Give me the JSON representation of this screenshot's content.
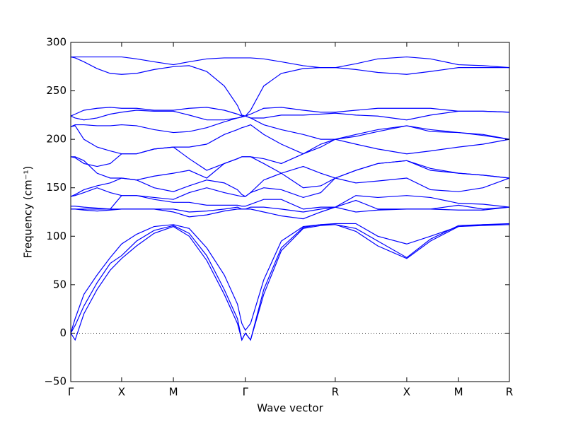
{
  "chart_data": {
    "type": "line",
    "xlabel": "Wave vector",
    "ylabel": "Frequency (cm⁻¹)",
    "color": "#0000ff",
    "hline": 0,
    "xlim": [
      0,
      1
    ],
    "ylim": [
      -50,
      300
    ],
    "xticks": [
      {
        "value": 0,
        "label": "Γ"
      },
      {
        "value": 0.116,
        "label": "X"
      },
      {
        "value": 0.234,
        "label": "M"
      },
      {
        "value": 0.398,
        "label": "Γ"
      },
      {
        "value": 0.603,
        "label": "R"
      },
      {
        "value": 0.766,
        "label": "X"
      },
      {
        "value": 0.884,
        "label": "M"
      },
      {
        "value": 1,
        "label": "R"
      }
    ],
    "yticks": [
      {
        "value": -50,
        "label": "−50"
      },
      0,
      50,
      100,
      150,
      200,
      250,
      300
    ],
    "x": [
      0,
      0.01,
      0.03,
      0.06,
      0.09,
      0.116,
      0.15,
      0.19,
      0.234,
      0.27,
      0.31,
      0.35,
      0.38,
      0.39,
      0.398,
      0.41,
      0.44,
      0.48,
      0.53,
      0.57,
      0.603,
      0.65,
      0.7,
      0.766,
      0.82,
      0.884,
      0.94,
      1
    ],
    "series": [
      {
        "values": [
          0,
          -7,
          20,
          45,
          65,
          77,
          90,
          103,
          110,
          100,
          75,
          40,
          10,
          -7,
          0,
          -7,
          40,
          85,
          108,
          111,
          112,
          105,
          90,
          77,
          95,
          110,
          111,
          112
        ]
      },
      {
        "values": [
          0,
          8,
          28,
          52,
          72,
          80,
          95,
          106,
          111,
          103,
          80,
          45,
          15,
          -7,
          0,
          -7,
          45,
          88,
          109,
          112,
          112,
          108,
          95,
          78,
          97,
          111,
          112,
          112
        ]
      },
      {
        "values": [
          0,
          15,
          40,
          60,
          78,
          92,
          102,
          110,
          112,
          108,
          88,
          60,
          30,
          10,
          3,
          10,
          55,
          95,
          110,
          112,
          113,
          113,
          100,
          92,
          100,
          110,
          112,
          113
        ]
      },
      {
        "values": [
          128,
          128,
          127,
          126,
          127,
          128,
          128,
          128,
          125,
          120,
          122,
          126,
          128,
          128,
          128,
          128,
          125,
          121,
          118,
          125,
          130,
          125,
          127,
          128,
          128,
          127,
          127,
          130
        ]
      },
      {
        "values": [
          128,
          128,
          128,
          128,
          128,
          128,
          128,
          128,
          128,
          125,
          126,
          128,
          130,
          128,
          128,
          130,
          130,
          128,
          125,
          128,
          130,
          137,
          128,
          128,
          128,
          132,
          128,
          130
        ]
      },
      {
        "values": [
          131,
          131,
          130,
          129,
          128,
          142,
          142,
          138,
          135,
          135,
          132,
          132,
          132,
          131,
          131,
          133,
          138,
          138,
          128,
          130,
          130,
          142,
          140,
          142,
          140,
          134,
          133,
          130
        ]
      },
      {
        "values": [
          141,
          142,
          145,
          150,
          145,
          142,
          142,
          140,
          138,
          145,
          150,
          145,
          142,
          141,
          141,
          145,
          150,
          148,
          140,
          145,
          160,
          155,
          157,
          160,
          148,
          146,
          150,
          160
        ]
      },
      {
        "values": [
          141,
          143,
          148,
          152,
          155,
          160,
          158,
          150,
          146,
          152,
          158,
          155,
          148,
          143,
          141,
          145,
          158,
          165,
          150,
          152,
          160,
          168,
          175,
          178,
          170,
          165,
          163,
          160
        ]
      },
      {
        "values": [
          182,
          182,
          178,
          165,
          160,
          160,
          158,
          162,
          165,
          168,
          160,
          175,
          180,
          182,
          182,
          182,
          175,
          165,
          172,
          165,
          160,
          168,
          175,
          178,
          168,
          165,
          163,
          160
        ]
      },
      {
        "values": [
          182,
          181,
          175,
          172,
          175,
          185,
          185,
          190,
          192,
          180,
          168,
          175,
          180,
          182,
          182,
          182,
          180,
          175,
          185,
          195,
          200,
          203,
          208,
          214,
          208,
          207,
          205,
          200
        ]
      },
      {
        "values": [
          213,
          214,
          200,
          192,
          188,
          185,
          185,
          190,
          192,
          192,
          195,
          205,
          210,
          212,
          213,
          215,
          205,
          195,
          185,
          192,
          200,
          195,
          190,
          185,
          188,
          192,
          195,
          200
        ]
      },
      {
        "values": [
          213,
          215,
          215,
          214,
          214,
          215,
          214,
          210,
          207,
          208,
          212,
          218,
          222,
          223,
          224,
          222,
          215,
          210,
          205,
          200,
          200,
          205,
          210,
          214,
          210,
          207,
          204,
          200
        ]
      },
      {
        "values": [
          224,
          222,
          220,
          222,
          226,
          228,
          230,
          229,
          229,
          225,
          220,
          220,
          222,
          223,
          224,
          222,
          222,
          225,
          225,
          226,
          227,
          225,
          224,
          220,
          225,
          229,
          229,
          228
        ]
      },
      {
        "values": [
          224,
          226,
          230,
          232,
          233,
          232,
          232,
          230,
          230,
          232,
          233,
          230,
          226,
          224,
          224,
          226,
          232,
          233,
          230,
          228,
          228,
          230,
          232,
          232,
          232,
          229,
          229,
          228
        ]
      },
      {
        "values": [
          285,
          284,
          280,
          273,
          268,
          267,
          268,
          272,
          275,
          276,
          270,
          255,
          235,
          225,
          224,
          230,
          255,
          268,
          273,
          274,
          274,
          272,
          269,
          267,
          270,
          274,
          274,
          274
        ]
      },
      {
        "values": [
          285,
          285,
          285,
          285,
          285,
          285,
          283,
          280,
          277,
          280,
          283,
          284,
          284,
          284,
          284,
          284,
          283,
          280,
          276,
          274,
          274,
          278,
          283,
          285,
          283,
          277,
          276,
          274
        ]
      }
    ]
  }
}
